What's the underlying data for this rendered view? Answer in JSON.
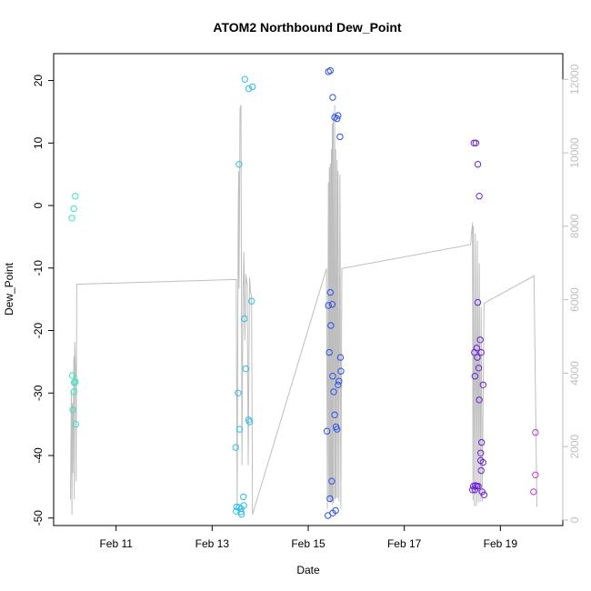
{
  "chart_data": {
    "type": "scatter",
    "title": "ATOM2 Northbound Dew_Point",
    "xlabel": "Date",
    "ylabel": "Dew_Point",
    "x_ticks": [
      {
        "label": "Feb 11",
        "value": 11
      },
      {
        "label": "Feb 13",
        "value": 13
      },
      {
        "label": "Feb 15",
        "value": 15
      },
      {
        "label": "Feb 17",
        "value": 17
      },
      {
        "label": "Feb 19",
        "value": 19
      }
    ],
    "xlim": [
      9.7,
      20.3
    ],
    "ylim": [
      -51.2,
      24.3
    ],
    "y_ticks": [
      -50,
      -40,
      -30,
      -20,
      -10,
      0,
      10,
      20
    ],
    "y2lim": [
      -150,
      12700
    ],
    "y2_ticks": [
      0,
      2000,
      4000,
      6000,
      8000,
      10000,
      12000
    ],
    "grid": false,
    "colors": {
      "line": "#bebebe",
      "axis": "#000000",
      "right_axis": "#bdbdbd"
    },
    "points": [
      {
        "x": 10.08,
        "y": -2.0,
        "color": "#33e6c2"
      },
      {
        "x": 10.12,
        "y": -0.5,
        "color": "#33e6c2"
      },
      {
        "x": 10.15,
        "y": 1.5,
        "color": "#33e6c2"
      },
      {
        "x": 10.09,
        "y": -27.2,
        "color": "#33e6c2"
      },
      {
        "x": 10.13,
        "y": -28.3,
        "color": "#33e6c2"
      },
      {
        "x": 10.15,
        "y": -28.2,
        "color": "#33e6c2"
      },
      {
        "x": 10.12,
        "y": -29.8,
        "color": "#33e6c2"
      },
      {
        "x": 10.1,
        "y": -32.7,
        "color": "#33e6c2"
      },
      {
        "x": 10.16,
        "y": -35.0,
        "color": "#33e6c2"
      },
      {
        "x": 13.68,
        "y": 20.2,
        "color": "#2ebfe8"
      },
      {
        "x": 13.76,
        "y": 18.7,
        "color": "#2ebfe8"
      },
      {
        "x": 13.84,
        "y": 19.0,
        "color": "#2ebfe8"
      },
      {
        "x": 13.56,
        "y": 6.6,
        "color": "#2ebfe8"
      },
      {
        "x": 13.82,
        "y": -15.3,
        "color": "#2ebfe8"
      },
      {
        "x": 13.67,
        "y": -18.1,
        "color": "#2ebfe8"
      },
      {
        "x": 13.7,
        "y": -26.1,
        "color": "#2ebfe8"
      },
      {
        "x": 13.54,
        "y": -30.0,
        "color": "#2ebfe8"
      },
      {
        "x": 13.76,
        "y": -34.3,
        "color": "#2ebfe8"
      },
      {
        "x": 13.78,
        "y": -34.6,
        "color": "#2ebfe8"
      },
      {
        "x": 13.57,
        "y": -35.8,
        "color": "#2ebfe8"
      },
      {
        "x": 13.49,
        "y": -38.7,
        "color": "#2ebfe8"
      },
      {
        "x": 13.65,
        "y": -46.6,
        "color": "#2ebfe8"
      },
      {
        "x": 13.51,
        "y": -48.2,
        "color": "#2ebfe8"
      },
      {
        "x": 13.56,
        "y": -48.3,
        "color": "#2ebfe8"
      },
      {
        "x": 13.6,
        "y": -48.5,
        "color": "#2ebfe8"
      },
      {
        "x": 13.66,
        "y": -48.0,
        "color": "#2ebfe8"
      },
      {
        "x": 13.5,
        "y": -48.9,
        "color": "#2ebfe8"
      },
      {
        "x": 13.6,
        "y": -49.0,
        "color": "#2ebfe8"
      },
      {
        "x": 13.61,
        "y": -49.4,
        "color": "#2ebfe8"
      },
      {
        "x": 15.42,
        "y": 21.4,
        "color": "#2a52e8"
      },
      {
        "x": 15.46,
        "y": 21.6,
        "color": "#2a52e8"
      },
      {
        "x": 15.51,
        "y": 17.3,
        "color": "#2a52e8"
      },
      {
        "x": 15.55,
        "y": 14.1,
        "color": "#2a52e8"
      },
      {
        "x": 15.62,
        "y": 14.4,
        "color": "#2a52e8"
      },
      {
        "x": 15.6,
        "y": 13.9,
        "color": "#2a52e8"
      },
      {
        "x": 15.66,
        "y": 11.0,
        "color": "#2a52e8"
      },
      {
        "x": 15.46,
        "y": -13.9,
        "color": "#2a52e8"
      },
      {
        "x": 15.42,
        "y": -16.0,
        "color": "#2a52e8"
      },
      {
        "x": 15.5,
        "y": -15.8,
        "color": "#2a52e8"
      },
      {
        "x": 15.47,
        "y": -19.2,
        "color": "#2a52e8"
      },
      {
        "x": 15.44,
        "y": -23.5,
        "color": "#2a52e8"
      },
      {
        "x": 15.67,
        "y": -24.3,
        "color": "#2a52e8"
      },
      {
        "x": 15.68,
        "y": -26.5,
        "color": "#2a52e8"
      },
      {
        "x": 15.51,
        "y": -27.3,
        "color": "#2a52e8"
      },
      {
        "x": 15.64,
        "y": -28.1,
        "color": "#2a52e8"
      },
      {
        "x": 15.62,
        "y": -28.7,
        "color": "#2a52e8"
      },
      {
        "x": 15.53,
        "y": -29.8,
        "color": "#2a52e8"
      },
      {
        "x": 15.55,
        "y": -33.5,
        "color": "#2a52e8"
      },
      {
        "x": 15.58,
        "y": -35.4,
        "color": "#2a52e8"
      },
      {
        "x": 15.6,
        "y": -35.8,
        "color": "#2a52e8"
      },
      {
        "x": 15.39,
        "y": -36.1,
        "color": "#2a52e8"
      },
      {
        "x": 15.49,
        "y": -44.1,
        "color": "#2a52e8"
      },
      {
        "x": 15.45,
        "y": -46.9,
        "color": "#2a52e8"
      },
      {
        "x": 15.57,
        "y": -48.8,
        "color": "#2a52e8"
      },
      {
        "x": 15.51,
        "y": -49.2,
        "color": "#2a52e8"
      },
      {
        "x": 15.41,
        "y": -49.6,
        "color": "#2a52e8"
      },
      {
        "x": 18.45,
        "y": 10.0,
        "color": "#6a20d8"
      },
      {
        "x": 18.49,
        "y": 10.0,
        "color": "#6a20d8"
      },
      {
        "x": 18.53,
        "y": 6.6,
        "color": "#6a20d8"
      },
      {
        "x": 18.56,
        "y": 1.5,
        "color": "#6a20d8"
      },
      {
        "x": 18.53,
        "y": -15.5,
        "color": "#6a20d8"
      },
      {
        "x": 18.58,
        "y": -21.5,
        "color": "#6a20d8"
      },
      {
        "x": 18.51,
        "y": -22.8,
        "color": "#6a20d8"
      },
      {
        "x": 18.46,
        "y": -23.5,
        "color": "#6a20d8"
      },
      {
        "x": 18.6,
        "y": -23.5,
        "color": "#6a20d8"
      },
      {
        "x": 18.52,
        "y": -24.3,
        "color": "#6a20d8"
      },
      {
        "x": 18.55,
        "y": -26.0,
        "color": "#6a20d8"
      },
      {
        "x": 18.47,
        "y": -27.3,
        "color": "#6a20d8"
      },
      {
        "x": 18.64,
        "y": -28.7,
        "color": "#6a20d8"
      },
      {
        "x": 18.56,
        "y": -31.1,
        "color": "#6a20d8"
      },
      {
        "x": 18.61,
        "y": -37.9,
        "color": "#6a20d8"
      },
      {
        "x": 18.59,
        "y": -39.6,
        "color": "#6a20d8"
      },
      {
        "x": 18.59,
        "y": -40.8,
        "color": "#6a20d8"
      },
      {
        "x": 18.64,
        "y": -41.1,
        "color": "#6a20d8"
      },
      {
        "x": 18.6,
        "y": -42.4,
        "color": "#6a20d8"
      },
      {
        "x": 18.44,
        "y": -44.9,
        "color": "#6a20d8"
      },
      {
        "x": 18.48,
        "y": -44.8,
        "color": "#6a20d8"
      },
      {
        "x": 18.51,
        "y": -44.9,
        "color": "#6a20d8"
      },
      {
        "x": 18.54,
        "y": -44.9,
        "color": "#6a20d8"
      },
      {
        "x": 18.42,
        "y": -45.5,
        "color": "#6a20d8"
      },
      {
        "x": 18.47,
        "y": -45.5,
        "color": "#6a20d8"
      },
      {
        "x": 18.62,
        "y": -45.8,
        "color": "#6a20d8"
      },
      {
        "x": 18.66,
        "y": -46.3,
        "color": "#6a20d8"
      },
      {
        "x": 19.73,
        "y": -36.3,
        "color": "#c833e0"
      },
      {
        "x": 19.73,
        "y": -43.1,
        "color": "#c833e0"
      },
      {
        "x": 19.69,
        "y": -45.8,
        "color": "#c833e0"
      }
    ],
    "line_series": [
      [
        10.05,
        560
      ],
      [
        10.07,
        3550
      ],
      [
        10.08,
        140
      ],
      [
        10.09,
        3180
      ],
      [
        10.1,
        1280
      ],
      [
        10.12,
        4450
      ],
      [
        10.13,
        560
      ],
      [
        10.14,
        4850
      ],
      [
        10.16,
        4050
      ],
      [
        10.17,
        1050
      ],
      [
        10.18,
        6420
      ],
      [
        13.5,
        6550
      ],
      [
        13.52,
        360
      ],
      [
        13.54,
        7650
      ],
      [
        13.55,
        9500
      ],
      [
        13.56,
        6300
      ],
      [
        13.58,
        11200
      ],
      [
        13.6,
        11300
      ],
      [
        13.62,
        1500
      ],
      [
        13.64,
        6000
      ],
      [
        13.66,
        7300
      ],
      [
        13.68,
        4900
      ],
      [
        13.7,
        6700
      ],
      [
        13.73,
        6400
      ],
      [
        13.75,
        1500
      ],
      [
        13.78,
        6600
      ],
      [
        13.8,
        6200
      ],
      [
        13.82,
        6100
      ],
      [
        13.84,
        150
      ],
      [
        15.38,
        6850
      ],
      [
        15.4,
        300
      ],
      [
        15.42,
        9200
      ],
      [
        15.43,
        560
      ],
      [
        15.44,
        9600
      ],
      [
        15.45,
        500
      ],
      [
        15.46,
        9700
      ],
      [
        15.47,
        460
      ],
      [
        15.48,
        10100
      ],
      [
        15.49,
        500
      ],
      [
        15.5,
        10800
      ],
      [
        15.51,
        420
      ],
      [
        15.52,
        11100
      ],
      [
        15.53,
        480
      ],
      [
        15.55,
        11300
      ],
      [
        15.56,
        560
      ],
      [
        15.57,
        10100
      ],
      [
        15.58,
        600
      ],
      [
        15.6,
        9800
      ],
      [
        15.61,
        600
      ],
      [
        15.62,
        9500
      ],
      [
        15.64,
        500
      ],
      [
        15.66,
        9400
      ],
      [
        15.68,
        300
      ],
      [
        15.7,
        6850
      ],
      [
        18.38,
        7500
      ],
      [
        18.42,
        8100
      ],
      [
        18.43,
        540
      ],
      [
        18.44,
        8000
      ],
      [
        18.46,
        380
      ],
      [
        18.48,
        7800
      ],
      [
        18.5,
        380
      ],
      [
        18.52,
        7600
      ],
      [
        18.54,
        480
      ],
      [
        18.56,
        7000
      ],
      [
        18.58,
        500
      ],
      [
        18.6,
        5800
      ],
      [
        18.62,
        500
      ],
      [
        18.66,
        5900
      ],
      [
        19.7,
        6650
      ],
      [
        19.76,
        360
      ]
    ]
  }
}
